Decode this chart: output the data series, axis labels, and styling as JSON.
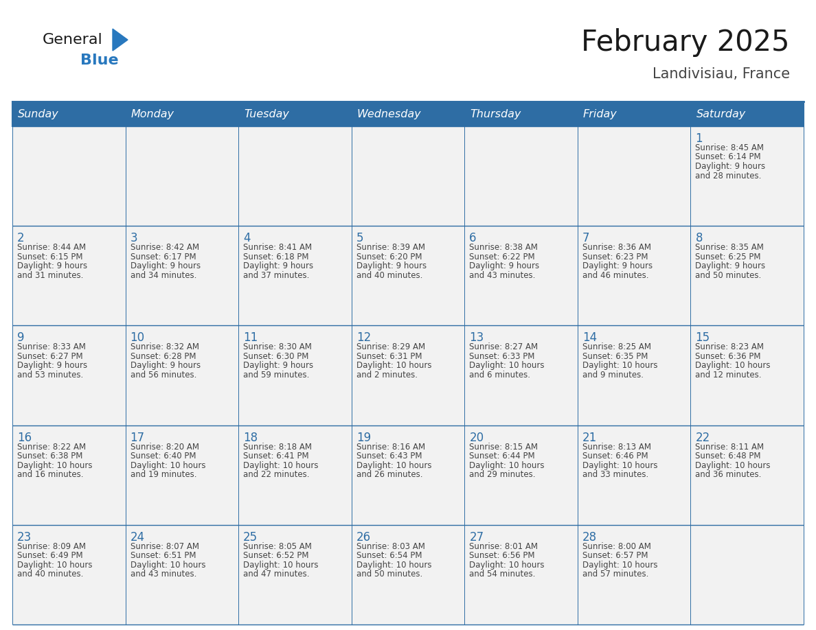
{
  "title": "February 2025",
  "subtitle": "Landivisiau, France",
  "days_of_week": [
    "Sunday",
    "Monday",
    "Tuesday",
    "Wednesday",
    "Thursday",
    "Friday",
    "Saturday"
  ],
  "header_bg": "#2E6DA4",
  "header_text": "#FFFFFF",
  "cell_bg": "#F2F2F2",
  "border_color": "#2E6DA4",
  "day_number_color": "#2E6DA4",
  "text_color": "#444444",
  "logo_general_color": "#1a1a1a",
  "logo_blue_color": "#2878BE",
  "title_color": "#1a1a1a",
  "subtitle_color": "#444444",
  "calendar_data": [
    [
      null,
      null,
      null,
      null,
      null,
      null,
      {
        "day": "1",
        "sunrise": "8:45 AM",
        "sunset": "6:14 PM",
        "daylight_l1": "Daylight: 9 hours",
        "daylight_l2": "and 28 minutes."
      }
    ],
    [
      {
        "day": "2",
        "sunrise": "8:44 AM",
        "sunset": "6:15 PM",
        "daylight_l1": "Daylight: 9 hours",
        "daylight_l2": "and 31 minutes."
      },
      {
        "day": "3",
        "sunrise": "8:42 AM",
        "sunset": "6:17 PM",
        "daylight_l1": "Daylight: 9 hours",
        "daylight_l2": "and 34 minutes."
      },
      {
        "day": "4",
        "sunrise": "8:41 AM",
        "sunset": "6:18 PM",
        "daylight_l1": "Daylight: 9 hours",
        "daylight_l2": "and 37 minutes."
      },
      {
        "day": "5",
        "sunrise": "8:39 AM",
        "sunset": "6:20 PM",
        "daylight_l1": "Daylight: 9 hours",
        "daylight_l2": "and 40 minutes."
      },
      {
        "day": "6",
        "sunrise": "8:38 AM",
        "sunset": "6:22 PM",
        "daylight_l1": "Daylight: 9 hours",
        "daylight_l2": "and 43 minutes."
      },
      {
        "day": "7",
        "sunrise": "8:36 AM",
        "sunset": "6:23 PM",
        "daylight_l1": "Daylight: 9 hours",
        "daylight_l2": "and 46 minutes."
      },
      {
        "day": "8",
        "sunrise": "8:35 AM",
        "sunset": "6:25 PM",
        "daylight_l1": "Daylight: 9 hours",
        "daylight_l2": "and 50 minutes."
      }
    ],
    [
      {
        "day": "9",
        "sunrise": "8:33 AM",
        "sunset": "6:27 PM",
        "daylight_l1": "Daylight: 9 hours",
        "daylight_l2": "and 53 minutes."
      },
      {
        "day": "10",
        "sunrise": "8:32 AM",
        "sunset": "6:28 PM",
        "daylight_l1": "Daylight: 9 hours",
        "daylight_l2": "and 56 minutes."
      },
      {
        "day": "11",
        "sunrise": "8:30 AM",
        "sunset": "6:30 PM",
        "daylight_l1": "Daylight: 9 hours",
        "daylight_l2": "and 59 minutes."
      },
      {
        "day": "12",
        "sunrise": "8:29 AM",
        "sunset": "6:31 PM",
        "daylight_l1": "Daylight: 10 hours",
        "daylight_l2": "and 2 minutes."
      },
      {
        "day": "13",
        "sunrise": "8:27 AM",
        "sunset": "6:33 PM",
        "daylight_l1": "Daylight: 10 hours",
        "daylight_l2": "and 6 minutes."
      },
      {
        "day": "14",
        "sunrise": "8:25 AM",
        "sunset": "6:35 PM",
        "daylight_l1": "Daylight: 10 hours",
        "daylight_l2": "and 9 minutes."
      },
      {
        "day": "15",
        "sunrise": "8:23 AM",
        "sunset": "6:36 PM",
        "daylight_l1": "Daylight: 10 hours",
        "daylight_l2": "and 12 minutes."
      }
    ],
    [
      {
        "day": "16",
        "sunrise": "8:22 AM",
        "sunset": "6:38 PM",
        "daylight_l1": "Daylight: 10 hours",
        "daylight_l2": "and 16 minutes."
      },
      {
        "day": "17",
        "sunrise": "8:20 AM",
        "sunset": "6:40 PM",
        "daylight_l1": "Daylight: 10 hours",
        "daylight_l2": "and 19 minutes."
      },
      {
        "day": "18",
        "sunrise": "8:18 AM",
        "sunset": "6:41 PM",
        "daylight_l1": "Daylight: 10 hours",
        "daylight_l2": "and 22 minutes."
      },
      {
        "day": "19",
        "sunrise": "8:16 AM",
        "sunset": "6:43 PM",
        "daylight_l1": "Daylight: 10 hours",
        "daylight_l2": "and 26 minutes."
      },
      {
        "day": "20",
        "sunrise": "8:15 AM",
        "sunset": "6:44 PM",
        "daylight_l1": "Daylight: 10 hours",
        "daylight_l2": "and 29 minutes."
      },
      {
        "day": "21",
        "sunrise": "8:13 AM",
        "sunset": "6:46 PM",
        "daylight_l1": "Daylight: 10 hours",
        "daylight_l2": "and 33 minutes."
      },
      {
        "day": "22",
        "sunrise": "8:11 AM",
        "sunset": "6:48 PM",
        "daylight_l1": "Daylight: 10 hours",
        "daylight_l2": "and 36 minutes."
      }
    ],
    [
      {
        "day": "23",
        "sunrise": "8:09 AM",
        "sunset": "6:49 PM",
        "daylight_l1": "Daylight: 10 hours",
        "daylight_l2": "and 40 minutes."
      },
      {
        "day": "24",
        "sunrise": "8:07 AM",
        "sunset": "6:51 PM",
        "daylight_l1": "Daylight: 10 hours",
        "daylight_l2": "and 43 minutes."
      },
      {
        "day": "25",
        "sunrise": "8:05 AM",
        "sunset": "6:52 PM",
        "daylight_l1": "Daylight: 10 hours",
        "daylight_l2": "and 47 minutes."
      },
      {
        "day": "26",
        "sunrise": "8:03 AM",
        "sunset": "6:54 PM",
        "daylight_l1": "Daylight: 10 hours",
        "daylight_l2": "and 50 minutes."
      },
      {
        "day": "27",
        "sunrise": "8:01 AM",
        "sunset": "6:56 PM",
        "daylight_l1": "Daylight: 10 hours",
        "daylight_l2": "and 54 minutes."
      },
      {
        "day": "28",
        "sunrise": "8:00 AM",
        "sunset": "6:57 PM",
        "daylight_l1": "Daylight: 10 hours",
        "daylight_l2": "and 57 minutes."
      },
      null
    ]
  ]
}
